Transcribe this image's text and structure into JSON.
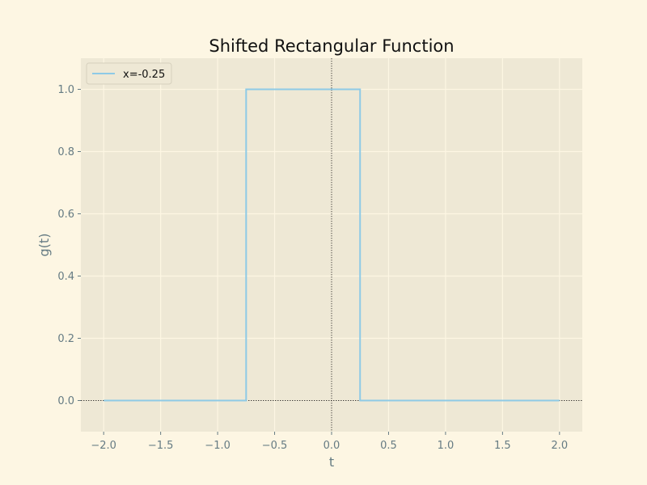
{
  "chart_data": {
    "type": "line",
    "title": "Shifted Rectangular Function",
    "xlabel": "t",
    "ylabel": "g(t)",
    "xlim": [
      -2.2,
      2.2
    ],
    "ylim": [
      -0.1,
      1.1
    ],
    "xticks": [
      -2.0,
      -1.5,
      -1.0,
      -0.5,
      0.0,
      0.5,
      1.0,
      1.5,
      2.0
    ],
    "xtick_labels": [
      "−2.0",
      "−1.5",
      "−1.0",
      "−0.5",
      "0.0",
      "0.5",
      "1.0",
      "1.5",
      "2.0"
    ],
    "yticks": [
      0.0,
      0.2,
      0.4,
      0.6,
      0.8,
      1.0
    ],
    "ytick_labels": [
      "0.0",
      "0.2",
      "0.4",
      "0.6",
      "0.8",
      "1.0"
    ],
    "grid": true,
    "legend_position": "top-left",
    "reference_lines": {
      "horizontal_y": 0,
      "vertical_x": 0,
      "style": "dotted"
    },
    "series": [
      {
        "name": "x=-0.25",
        "color": "#8ecae6",
        "x": [
          -2.0,
          -0.75,
          -0.75,
          0.25,
          0.25,
          2.0
        ],
        "y": [
          0.0,
          0.0,
          1.0,
          1.0,
          0.0,
          0.0
        ]
      }
    ],
    "colors": {
      "figure_bg": "#fdf6e3",
      "axes_bg": "#eee8d5",
      "grid": "#fdf6e3",
      "tick_text": "#657b83"
    }
  }
}
